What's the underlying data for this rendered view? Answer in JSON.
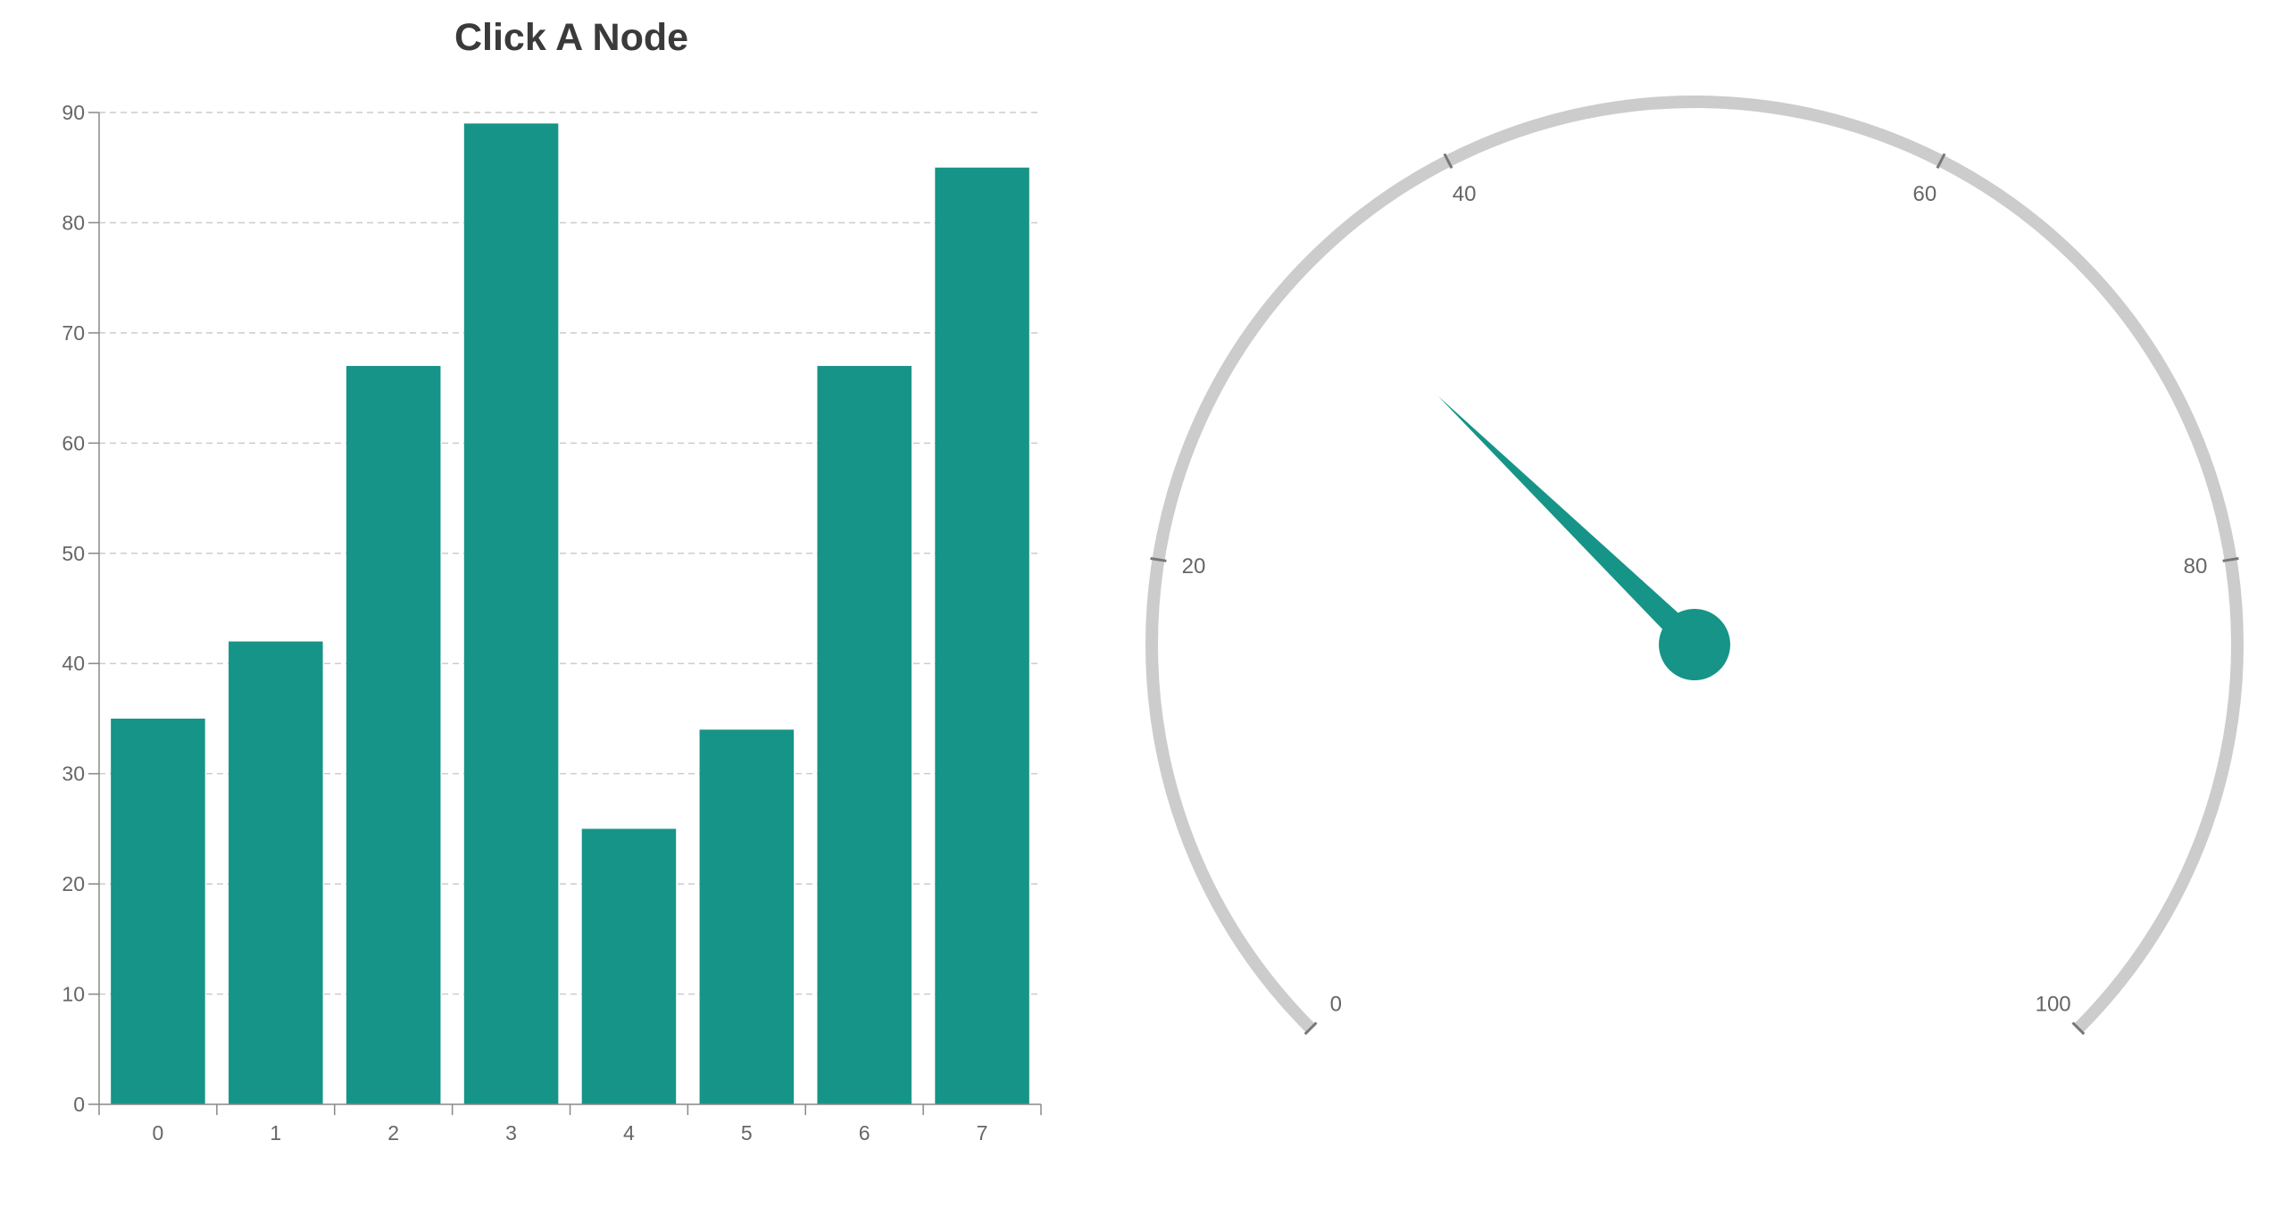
{
  "chart_data": [
    {
      "type": "bar",
      "title": "Click A Node",
      "categories": [
        "0",
        "1",
        "2",
        "3",
        "4",
        "5",
        "6",
        "7"
      ],
      "values": [
        35,
        42,
        67,
        89,
        25,
        34,
        67,
        85
      ],
      "xlabel": "",
      "ylabel": "",
      "ylim": [
        0,
        90
      ],
      "yticks": [
        0,
        10,
        20,
        30,
        40,
        50,
        60,
        70,
        80,
        90
      ],
      "grid": true,
      "bar_color": "#169487",
      "legend": "none"
    },
    {
      "type": "gauge",
      "min": 0,
      "max": 100,
      "value": 33,
      "ticks": [
        0,
        20,
        40,
        60,
        80,
        100
      ],
      "arc_color": "#cccccc",
      "needle_color": "#169487",
      "tick_color": "#777777"
    }
  ]
}
